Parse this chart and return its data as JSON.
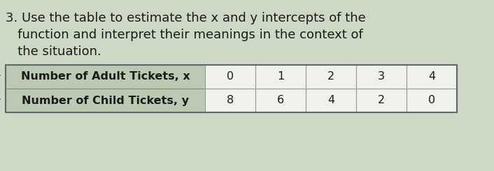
{
  "title_number": "3.",
  "title_text_line1": " Use the table to estimate the x and y intercepts of the",
  "title_text_line2": "   function and interpret their meanings in the context of",
  "title_text_line3": "   the situation.",
  "row1_header": "Number of Adult Tickets, x",
  "row2_header": "Number of Child Tickets, y",
  "row1_values": [
    "0",
    "1",
    "2",
    "3",
    "4"
  ],
  "row2_values": [
    "8",
    "6",
    "4",
    "2",
    "0"
  ],
  "background_color": "#cdd9c5",
  "table_header_bg": "#bccab4",
  "table_cell_bg": "#eef2eb",
  "text_color": "#1a1a1a",
  "font_size_title": 13.0,
  "font_size_table": 11.5,
  "bullet": "•"
}
